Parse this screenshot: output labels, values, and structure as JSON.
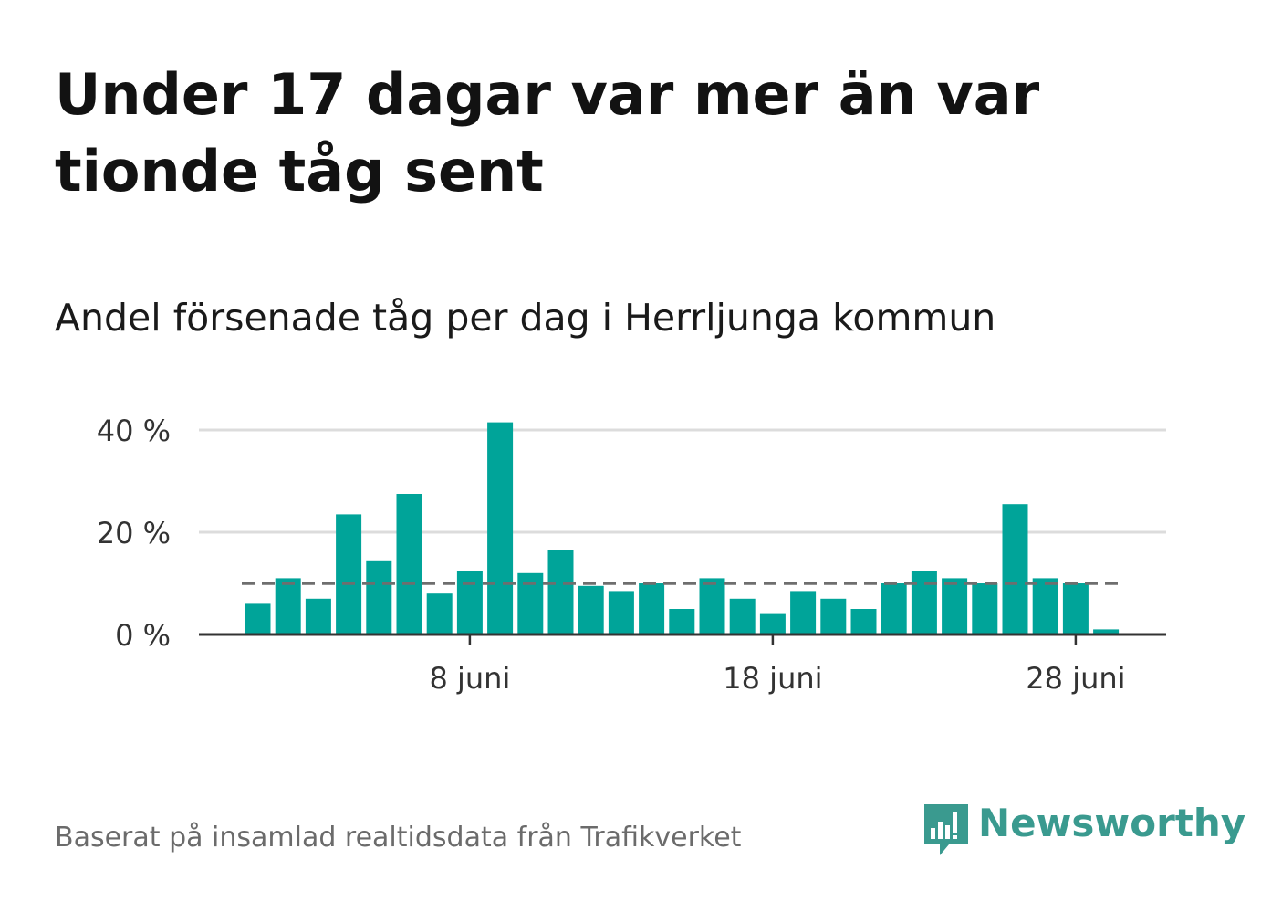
{
  "title": "Under 17 dagar var mer än var tionde tåg sent",
  "subtitle": "Andel försenade tåg per dag i Herrljunga kommun",
  "source": "Baserat på insamlad realtidsdata från Trafikverket",
  "brand": "Newsworthy",
  "colors": {
    "bar": "#00a499",
    "grid": "#dcdcdc",
    "axis": "#333333",
    "reference": "#6e6e6e",
    "brand": "#3a9a8f"
  },
  "chart_data": {
    "type": "bar",
    "title": "Andel försenade tåg per dag i Herrljunga kommun",
    "xlabel": "",
    "ylabel": "",
    "x": [
      1,
      2,
      3,
      4,
      5,
      6,
      7,
      8,
      9,
      10,
      11,
      12,
      13,
      14,
      15,
      16,
      17,
      18,
      19,
      20,
      21,
      22,
      23,
      24,
      25,
      26,
      27,
      28,
      29,
      30
    ],
    "values": [
      6,
      11,
      7,
      23.5,
      14.5,
      27.5,
      8,
      12.5,
      41.5,
      12,
      16.5,
      9.5,
      8.5,
      10,
      5,
      11,
      7,
      4,
      8.5,
      7,
      5,
      10,
      12.5,
      11,
      10,
      25.5,
      11,
      10,
      1,
      0
    ],
    "reference_line": 10,
    "ylim": [
      0,
      45
    ],
    "yticks": [
      0,
      20,
      40
    ],
    "ytick_labels": [
      "0 %",
      "20 %",
      "40 %"
    ],
    "xticks": [
      8,
      18,
      28
    ],
    "xtick_labels": [
      "8 juni",
      "18 juni",
      "28 juni"
    ],
    "grid": true,
    "legend": "none"
  }
}
